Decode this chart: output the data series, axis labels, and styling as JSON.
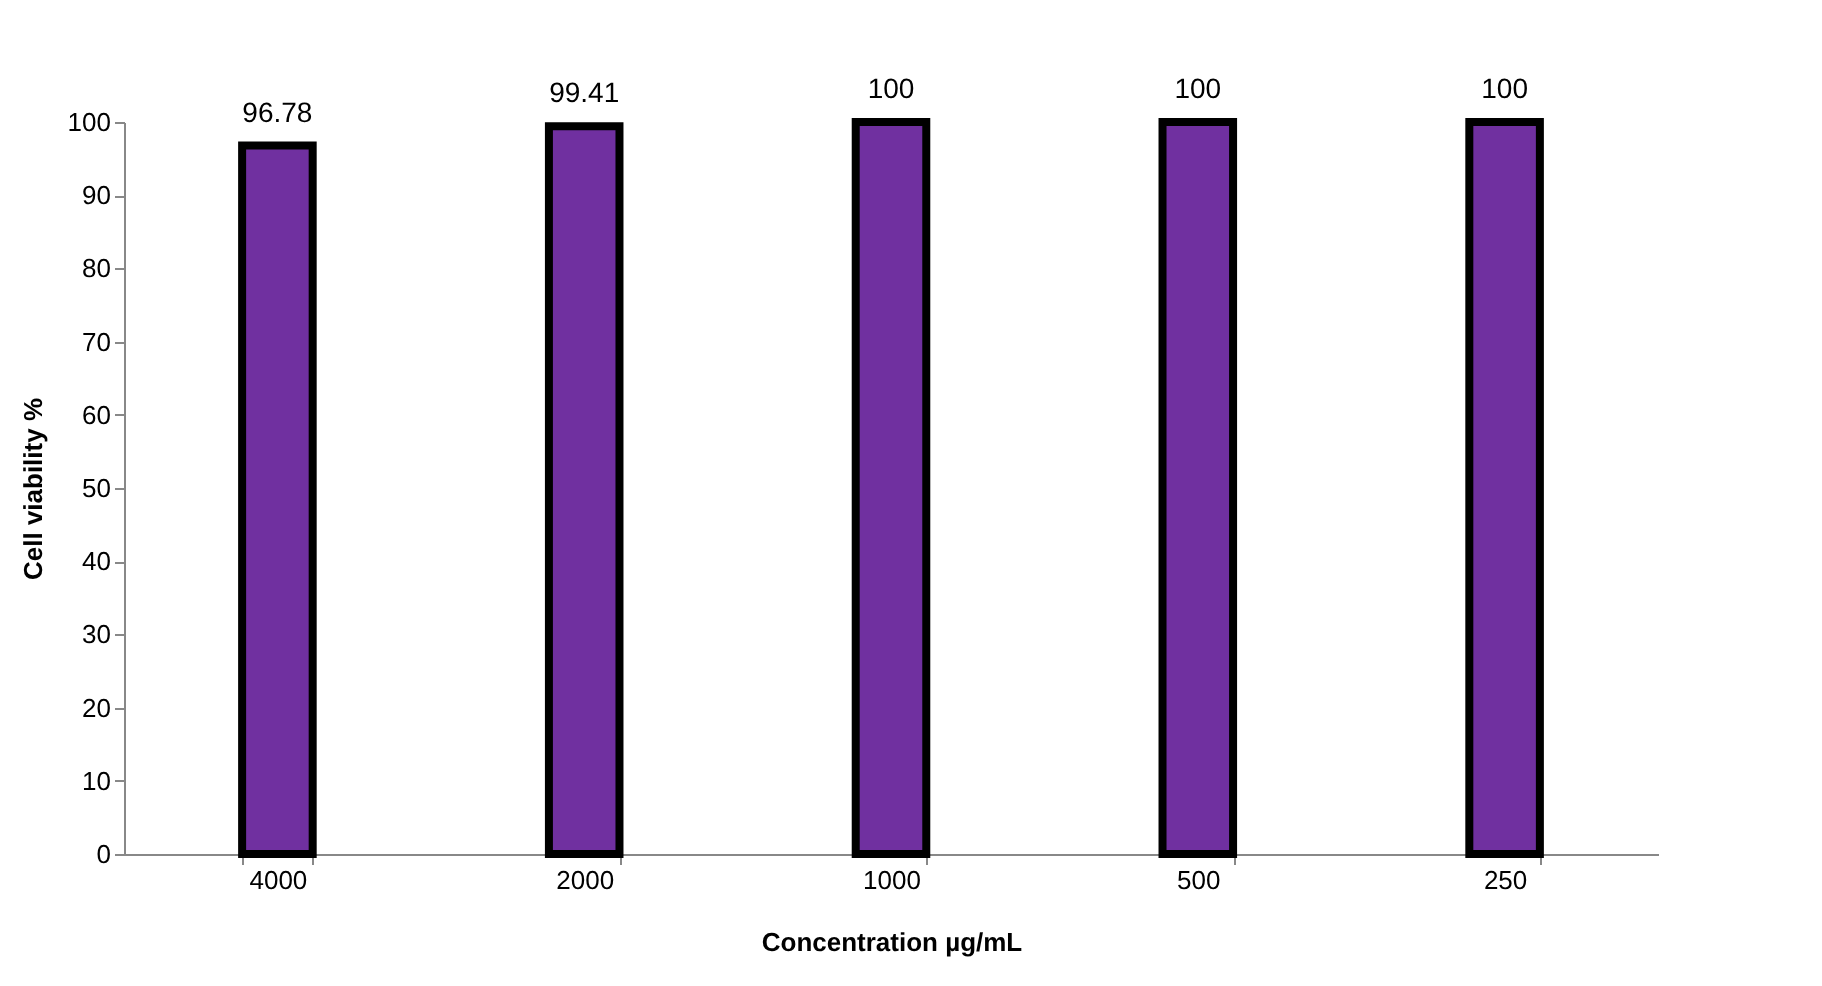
{
  "chart_data": {
    "type": "bar",
    "xlabel": "Concentration µg/mL",
    "ylabel": "Cell viability %",
    "categories": [
      "4000",
      "2000",
      "1000",
      "500",
      "250"
    ],
    "values": [
      96.78,
      99.41,
      100,
      100,
      100
    ],
    "value_labels": [
      "96.78",
      "99.41",
      "100",
      "100",
      "100"
    ],
    "color": "#7030a0",
    "ylim": [
      0,
      100
    ],
    "yticks": [
      0,
      10,
      20,
      30,
      40,
      50,
      60,
      70,
      80,
      90,
      100
    ],
    "grid": false
  }
}
